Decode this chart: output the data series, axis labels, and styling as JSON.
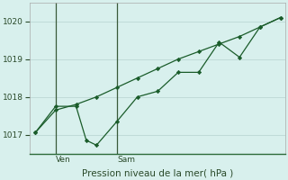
{
  "xlabel": "Pression niveau de la mer( hPa )",
  "background_color": "#d8f0ed",
  "plot_bg_color": "#d8f0ed",
  "grid_color": "#c0dbd8",
  "line_color": "#1a5c2a",
  "marker_color": "#1a5c2a",
  "spine_color": "#2d6b3a",
  "x_series1": [
    0,
    2,
    4,
    6,
    8,
    10,
    12,
    14,
    16,
    18,
    20,
    22,
    24
  ],
  "y_series1": [
    1017.05,
    1017.65,
    1017.8,
    1018.0,
    1018.25,
    1018.5,
    1018.75,
    1019.0,
    1019.2,
    1019.4,
    1019.6,
    1019.85,
    1020.1
  ],
  "x_series2": [
    0,
    2,
    4,
    5,
    6,
    8,
    10,
    12,
    14,
    16,
    18,
    20,
    22,
    24
  ],
  "y_series2": [
    1017.05,
    1017.75,
    1017.75,
    1016.85,
    1016.72,
    1017.35,
    1018.0,
    1018.15,
    1018.65,
    1018.65,
    1019.45,
    1019.05,
    1019.85,
    1020.1
  ],
  "ven_x": 2.0,
  "sam_x": 8.0,
  "ylim_min": 1016.5,
  "ylim_max": 1020.5,
  "yticks": [
    1017,
    1018,
    1019,
    1020
  ],
  "xlim_min": -0.5,
  "xlim_max": 24.5,
  "day_label_ven": "Ven",
  "day_label_sam": "Sam"
}
